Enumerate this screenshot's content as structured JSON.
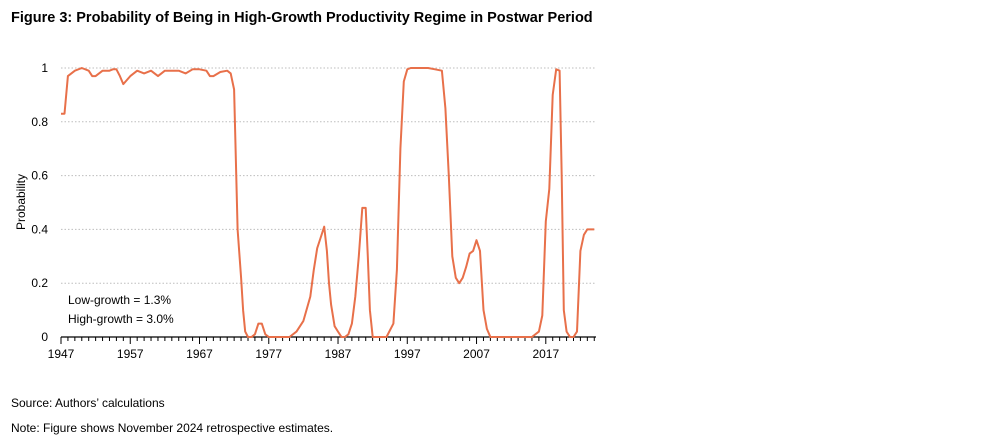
{
  "figure": {
    "title": "Figure 3: Probability of Being in High-Growth Productivity Regime in Postwar Period",
    "source": "Source: Authors’ calculations",
    "note": "Note: Figure shows November 2024 retrospective estimates."
  },
  "chart_data": {
    "type": "line",
    "title": "Figure 3: Probability of Being in High-Growth Productivity Regime in Postwar Period",
    "ylabel": "Probability",
    "xlabel": "",
    "xlim": [
      1947,
      2024.25
    ],
    "ylim": [
      0,
      1
    ],
    "xticks": [
      "1947",
      "1957",
      "1967",
      "1977",
      "1987",
      "1997",
      "2007",
      "2017"
    ],
    "yticks": [
      "0",
      "0.2",
      "0.4",
      "0.6",
      "0.8",
      "1"
    ],
    "grid": "horizontal dotted",
    "line_color": "#e8704a",
    "annotations": [
      "Low-growth = 1.3%",
      "High-growth = 3.0%"
    ],
    "series": [
      {
        "x": [
          1947.0,
          1947.5,
          1948.0,
          1949.0,
          1950.0,
          1951.0,
          1951.5,
          1952.0,
          1953.0,
          1954.0,
          1954.5,
          1955.0,
          1955.5,
          1956.0,
          1957.0,
          1958.0,
          1959.0,
          1960.0,
          1961.0,
          1962.0,
          1963.0,
          1964.0,
          1965.0,
          1966.0,
          1967.0,
          1968.0,
          1968.5,
          1969.0,
          1970.0,
          1971.0,
          1971.5,
          1972.0,
          1972.5,
          1973.0,
          1973.3,
          1973.6,
          1974.0,
          1974.5,
          1975.0,
          1975.5,
          1976.0,
          1976.5,
          1977.0,
          1977.5,
          1978.0,
          1980.0,
          1981.0,
          1982.0,
          1983.0,
          1983.5,
          1984.0,
          1984.5,
          1985.0,
          1985.4,
          1985.7,
          1986.0,
          1986.5,
          1987.0,
          1987.5,
          1988.0,
          1988.5,
          1989.0,
          1989.5,
          1990.0,
          1990.5,
          1991.0,
          1991.3,
          1991.6,
          1992.0,
          1992.5,
          1993.0,
          1993.5,
          1994.0,
          1995.0,
          1995.5,
          1996.0,
          1996.5,
          1997.0,
          1997.5,
          1998.0,
          1999.0,
          2000.0,
          2001.0,
          2002.0,
          2002.5,
          2003.0,
          2003.5,
          2004.0,
          2004.5,
          2005.0,
          2005.5,
          2006.0,
          2006.5,
          2007.0,
          2007.5,
          2008.0,
          2008.5,
          2009.0,
          2009.3,
          2009.6,
          2010.0,
          2010.5,
          2011.0,
          2012.0,
          2014.0,
          2015.0,
          2016.0,
          2016.5,
          2017.0,
          2017.5,
          2018.0,
          2018.5,
          2019.0,
          2019.3,
          2019.6,
          2020.0,
          2020.5,
          2021.0,
          2021.5,
          2022.0,
          2022.5,
          2023.0,
          2023.5,
          2024.0
        ],
        "values": [
          0.83,
          0.83,
          0.97,
          0.99,
          1.0,
          0.99,
          0.97,
          0.97,
          0.99,
          0.99,
          0.995,
          0.995,
          0.97,
          0.94,
          0.97,
          0.99,
          0.98,
          0.99,
          0.97,
          0.99,
          0.99,
          0.99,
          0.98,
          0.995,
          0.995,
          0.99,
          0.97,
          0.97,
          0.985,
          0.99,
          0.98,
          0.92,
          0.4,
          0.22,
          0.1,
          0.02,
          0.0,
          0.0,
          0.01,
          0.05,
          0.05,
          0.01,
          0.0,
          0.0,
          0.0,
          0.0,
          0.02,
          0.06,
          0.15,
          0.25,
          0.33,
          0.37,
          0.41,
          0.32,
          0.2,
          0.12,
          0.04,
          0.02,
          0.0,
          0.0,
          0.01,
          0.05,
          0.15,
          0.3,
          0.48,
          0.48,
          0.3,
          0.1,
          0.0,
          0.0,
          0.0,
          0.0,
          0.0,
          0.05,
          0.25,
          0.7,
          0.95,
          0.995,
          1.0,
          1.0,
          1.0,
          1.0,
          0.995,
          0.99,
          0.85,
          0.6,
          0.3,
          0.22,
          0.2,
          0.22,
          0.26,
          0.31,
          0.32,
          0.36,
          0.32,
          0.1,
          0.03,
          0.0,
          0.0,
          0.0,
          0.0,
          0.0,
          0.0,
          0.0,
          0.0,
          0.0,
          0.02,
          0.08,
          0.43,
          0.55,
          0.9,
          0.995,
          0.99,
          0.6,
          0.1,
          0.02,
          0.0,
          0.0,
          0.02,
          0.32,
          0.38,
          0.4,
          0.4,
          0.4
        ]
      }
    ]
  }
}
